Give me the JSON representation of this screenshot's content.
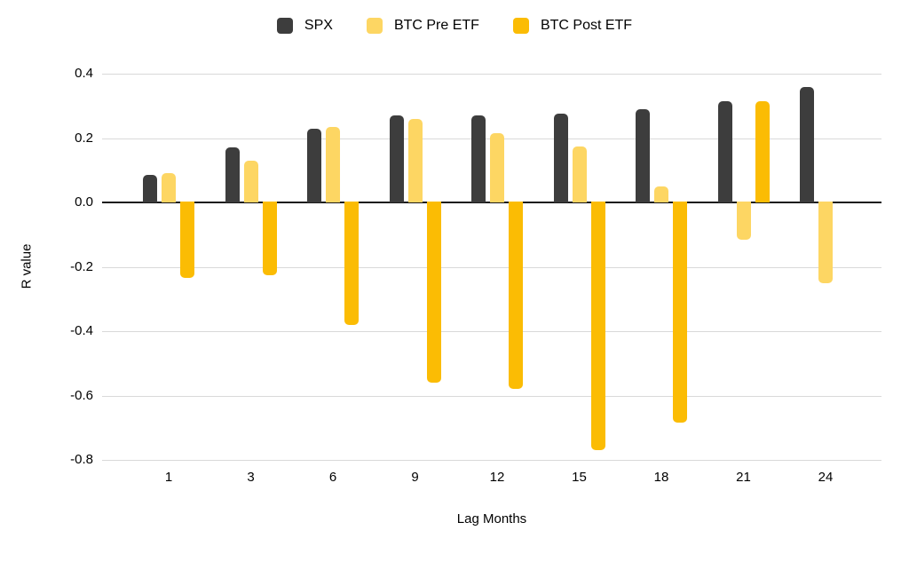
{
  "chart_data": {
    "type": "bar",
    "title": "",
    "xlabel": "Lag Months",
    "ylabel": "R value",
    "categories": [
      "1",
      "3",
      "6",
      "9",
      "12",
      "15",
      "18",
      "21",
      "24"
    ],
    "series": [
      {
        "name": "SPX",
        "color": "#3d3d3d",
        "values": [
          0.085,
          0.17,
          0.23,
          0.27,
          0.27,
          0.275,
          0.29,
          0.315,
          0.36
        ]
      },
      {
        "name": "BTC Pre ETF",
        "color": "#fdd663",
        "values": [
          0.09,
          0.13,
          0.235,
          0.26,
          0.215,
          0.175,
          0.05,
          -0.115,
          -0.25
        ]
      },
      {
        "name": "BTC Post ETF",
        "color": "#fbbc04",
        "values": [
          -0.235,
          -0.225,
          -0.38,
          -0.56,
          -0.58,
          -0.77,
          -0.685,
          0.315,
          null
        ]
      }
    ],
    "ylim": [
      -0.8,
      0.4
    ],
    "yticks": [
      "0.4",
      "0.2",
      "0.0",
      "-0.2",
      "-0.4",
      "-0.6",
      "-0.8"
    ],
    "grid": true,
    "zero_line": true,
    "legend_position": "top"
  },
  "colors": {
    "gridline": "#d9d9d9",
    "zero_line": "#1a1a1a",
    "text": "#000000",
    "background": "#ffffff"
  }
}
